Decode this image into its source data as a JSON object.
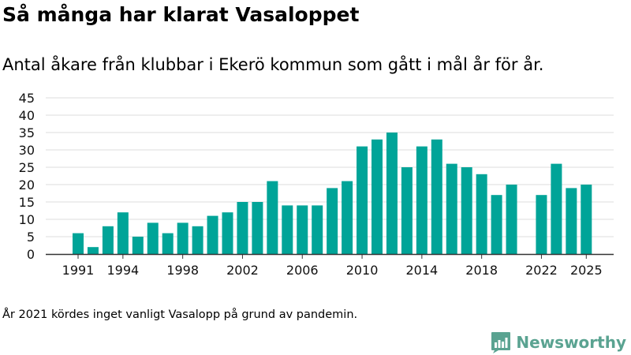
{
  "header": {
    "title": "Så många har klarat Vasaloppet",
    "subtitle": "Antal åkare från klubbar i Ekerö kommun som gått i mål år för år."
  },
  "footnote": "År 2021 kördes inget vanligt Vasalopp på grund av pandemin.",
  "brand": {
    "name": "Newsworthy",
    "icon": "bar-chart-speech-bubble-icon",
    "color": "#5aa391"
  },
  "chart_data": {
    "type": "bar",
    "title": "Så många har klarat Vasaloppet",
    "subtitle": "Antal åkare från klubbar i Ekerö kommun som gått i mål år för år.",
    "xlabel": "",
    "ylabel": "",
    "ylim": [
      0,
      45
    ],
    "yticks": [
      0,
      5,
      10,
      15,
      20,
      25,
      30,
      35,
      40,
      45
    ],
    "xtick_labels": [
      "1991",
      "1994",
      "1998",
      "2002",
      "2006",
      "2010",
      "2014",
      "2018",
      "2022",
      "2025"
    ],
    "bar_color": "#00a498",
    "grid": true,
    "series": [
      {
        "name": "Antal åkare",
        "data": [
          {
            "year": 1991,
            "value": 6
          },
          {
            "year": 1992,
            "value": 2
          },
          {
            "year": 1993,
            "value": 8
          },
          {
            "year": 1994,
            "value": 12
          },
          {
            "year": 1995,
            "value": 5
          },
          {
            "year": 1996,
            "value": 9
          },
          {
            "year": 1997,
            "value": 6
          },
          {
            "year": 1998,
            "value": 9
          },
          {
            "year": 1999,
            "value": 8
          },
          {
            "year": 2000,
            "value": 11
          },
          {
            "year": 2001,
            "value": 12
          },
          {
            "year": 2002,
            "value": 15
          },
          {
            "year": 2003,
            "value": 15
          },
          {
            "year": 2004,
            "value": 21
          },
          {
            "year": 2005,
            "value": 14
          },
          {
            "year": 2006,
            "value": 14
          },
          {
            "year": 2007,
            "value": 14
          },
          {
            "year": 2008,
            "value": 19
          },
          {
            "year": 2009,
            "value": 21
          },
          {
            "year": 2010,
            "value": 31
          },
          {
            "year": 2011,
            "value": 33
          },
          {
            "year": 2012,
            "value": 35
          },
          {
            "year": 2013,
            "value": 25
          },
          {
            "year": 2014,
            "value": 31
          },
          {
            "year": 2015,
            "value": 33
          },
          {
            "year": 2016,
            "value": 26
          },
          {
            "year": 2017,
            "value": 25
          },
          {
            "year": 2018,
            "value": 23
          },
          {
            "year": 2019,
            "value": 17
          },
          {
            "year": 2020,
            "value": 20
          },
          {
            "year": 2022,
            "value": 17
          },
          {
            "year": 2023,
            "value": 26
          },
          {
            "year": 2024,
            "value": 19
          },
          {
            "year": 2025,
            "value": 20
          }
        ]
      }
    ]
  }
}
